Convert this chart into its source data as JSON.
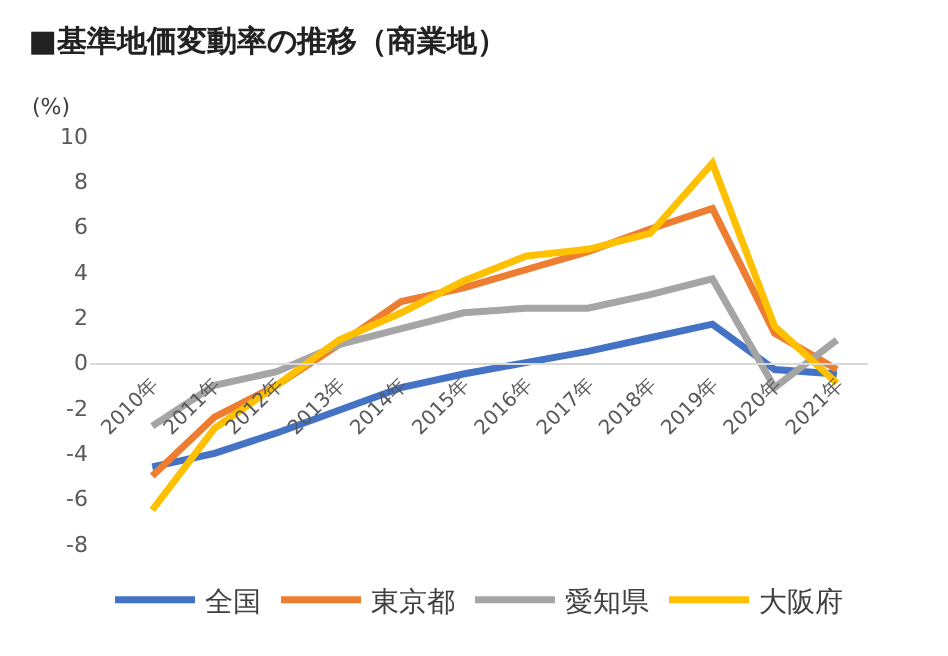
{
  "chart_data": {
    "type": "line",
    "title": "■基準地価変動率の推移（商業地）",
    "ylabel": "(%)",
    "categories": [
      "2010年",
      "2011年",
      "2012年",
      "2013年",
      "2014年",
      "2015年",
      "2016年",
      "2017年",
      "2018年",
      "2019年",
      "2020年",
      "2021年"
    ],
    "series": [
      {
        "name": "全国",
        "color": "#4472c4",
        "values": [
          -4.6,
          -4.0,
          -3.1,
          -2.1,
          -1.1,
          -0.5,
          0.0,
          0.5,
          1.1,
          1.7,
          -0.3,
          -0.5
        ]
      },
      {
        "name": "東京都",
        "color": "#ed7d31",
        "values": [
          -5.0,
          -2.4,
          -1.0,
          0.8,
          2.7,
          3.3,
          4.1,
          4.9,
          5.9,
          6.8,
          1.3,
          -0.3
        ]
      },
      {
        "name": "愛知県",
        "color": "#a5a5a5",
        "values": [
          -2.8,
          -1.0,
          -0.4,
          0.8,
          1.5,
          2.2,
          2.4,
          2.4,
          3.0,
          3.7,
          -1.1,
          1.0
        ]
      },
      {
        "name": "大阪府",
        "color": "#ffc000",
        "values": [
          -6.5,
          -2.9,
          -1.0,
          1.0,
          2.2,
          3.6,
          4.7,
          5.0,
          5.7,
          8.8,
          1.6,
          -0.9
        ]
      }
    ],
    "ylim": [
      -8,
      10
    ],
    "yticks": [
      -8,
      -6,
      -4,
      -2,
      0,
      2,
      4,
      6,
      8,
      10
    ],
    "grid": false,
    "legend": "bottom",
    "marker": "none",
    "line_style": "solid"
  }
}
